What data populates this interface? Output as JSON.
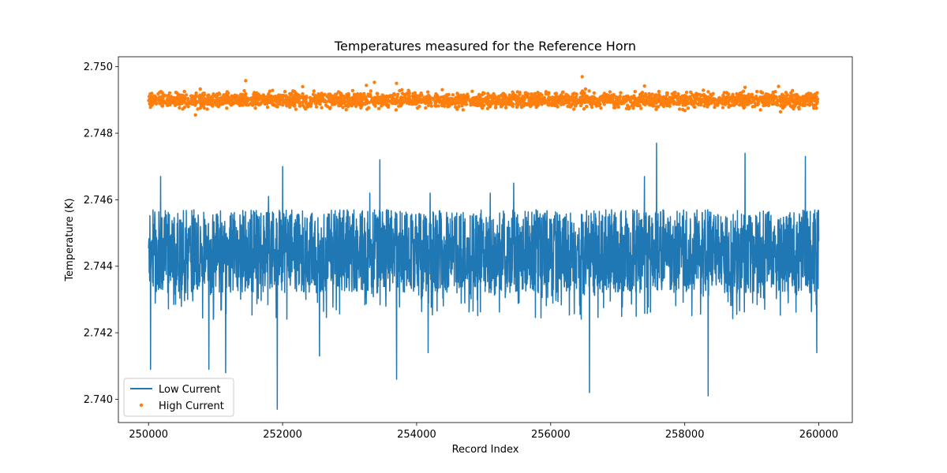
{
  "chart_data": {
    "type": "line+scatter",
    "title": "Temperatures measured for the Reference Horn",
    "xlabel": "Record Index",
    "ylabel": "Temperature (K)",
    "xlim": [
      249550,
      260500
    ],
    "ylim": [
      2.7393,
      2.7503
    ],
    "xticks": [
      250000,
      252000,
      254000,
      256000,
      258000,
      260000
    ],
    "xtick_labels": [
      "250000",
      "252000",
      "254000",
      "256000",
      "258000",
      "260000"
    ],
    "yticks": [
      2.74,
      2.742,
      2.744,
      2.746,
      2.748,
      2.75
    ],
    "ytick_labels": [
      "2.740",
      "2.742",
      "2.744",
      "2.746",
      "2.748",
      "2.750"
    ],
    "legend_position": "lower-left",
    "series": [
      {
        "name": "Low Current",
        "kind": "line",
        "color": "#1f77b4",
        "x_start": 250000,
        "x_end": 260000,
        "center": 2.7443,
        "band_low": 2.7432,
        "band_high": 2.7457,
        "spikes_up": [
          {
            "x": 250180,
            "y": 2.7467
          },
          {
            "x": 251790,
            "y": 2.7461
          },
          {
            "x": 252000,
            "y": 2.747
          },
          {
            "x": 253300,
            "y": 2.7462
          },
          {
            "x": 253450,
            "y": 2.7472
          },
          {
            "x": 254200,
            "y": 2.7462
          },
          {
            "x": 255100,
            "y": 2.7462
          },
          {
            "x": 255450,
            "y": 2.7465
          },
          {
            "x": 257400,
            "y": 2.7467
          },
          {
            "x": 257580,
            "y": 2.7477
          },
          {
            "x": 258900,
            "y": 2.7474
          },
          {
            "x": 259800,
            "y": 2.7473
          }
        ],
        "spikes_down": [
          {
            "x": 250030,
            "y": 2.7409
          },
          {
            "x": 250900,
            "y": 2.7409
          },
          {
            "x": 251150,
            "y": 2.7408
          },
          {
            "x": 251920,
            "y": 2.7397
          },
          {
            "x": 252550,
            "y": 2.7413
          },
          {
            "x": 253700,
            "y": 2.7406
          },
          {
            "x": 254170,
            "y": 2.7414
          },
          {
            "x": 256580,
            "y": 2.7402
          },
          {
            "x": 258350,
            "y": 2.7401
          },
          {
            "x": 259970,
            "y": 2.7414
          }
        ]
      },
      {
        "name": "High Current",
        "kind": "scatter",
        "color": "#ff7f0e",
        "x_start": 250000,
        "x_end": 260000,
        "center": 2.749,
        "band_low": 2.7487,
        "band_high": 2.7493,
        "outliers": [
          {
            "x": 250700,
            "y": 2.74855
          },
          {
            "x": 251450,
            "y": 2.74958
          },
          {
            "x": 252300,
            "y": 2.7494
          },
          {
            "x": 253250,
            "y": 2.74944
          },
          {
            "x": 253370,
            "y": 2.74953
          },
          {
            "x": 253700,
            "y": 2.7495
          },
          {
            "x": 256470,
            "y": 2.7497
          },
          {
            "x": 256520,
            "y": 2.74933
          },
          {
            "x": 257400,
            "y": 2.74942
          },
          {
            "x": 258900,
            "y": 2.74938
          },
          {
            "x": 259400,
            "y": 2.74941
          }
        ]
      }
    ]
  }
}
